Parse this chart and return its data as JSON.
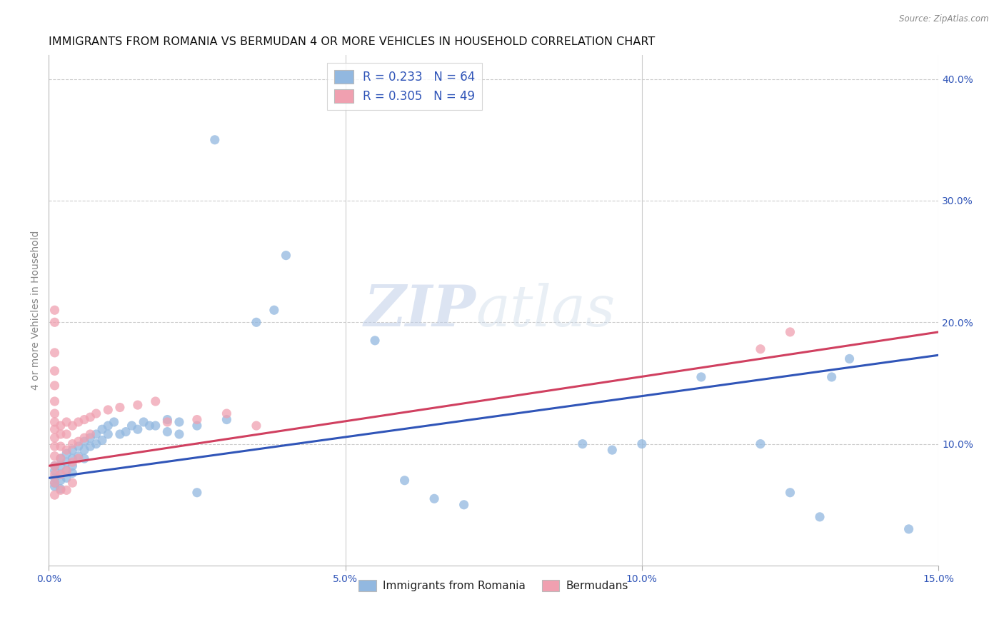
{
  "title": "IMMIGRANTS FROM ROMANIA VS BERMUDAN 4 OR MORE VEHICLES IN HOUSEHOLD CORRELATION CHART",
  "source": "Source: ZipAtlas.com",
  "ylabel": "4 or more Vehicles in Household",
  "xlim": [
    0.0,
    0.15
  ],
  "ylim": [
    0.0,
    0.42
  ],
  "xticks": [
    0.0,
    0.05,
    0.1,
    0.15
  ],
  "xtick_labels": [
    "0.0%",
    "5.0%",
    "10.0%",
    "15.0%"
  ],
  "yticks_right": [
    0.1,
    0.2,
    0.3,
    0.4
  ],
  "ytick_labels_right": [
    "10.0%",
    "20.0%",
    "30.0%",
    "40.0%"
  ],
  "blue_color": "#92b8e0",
  "pink_color": "#f0a0b0",
  "blue_line_color": "#3055b8",
  "pink_line_color": "#d04060",
  "legend_text_color": "#3055b8",
  "title_fontsize": 11.5,
  "axis_label_fontsize": 10,
  "tick_fontsize": 10,
  "R_blue": 0.233,
  "N_blue": 64,
  "R_pink": 0.305,
  "N_pink": 49,
  "watermark_zip": "ZIP",
  "watermark_atlas": "atlas",
  "blue_trend_x0": 0.0,
  "blue_trend_y0": 0.072,
  "blue_trend_x1": 0.15,
  "blue_trend_y1": 0.173,
  "pink_trend_x0": 0.0,
  "pink_trend_y0": 0.082,
  "pink_trend_x1": 0.15,
  "pink_trend_y1": 0.192,
  "blue_scatter": [
    [
      0.001,
      0.082
    ],
    [
      0.001,
      0.078
    ],
    [
      0.001,
      0.072
    ],
    [
      0.001,
      0.068
    ],
    [
      0.001,
      0.065
    ],
    [
      0.002,
      0.088
    ],
    [
      0.002,
      0.082
    ],
    [
      0.002,
      0.075
    ],
    [
      0.002,
      0.07
    ],
    [
      0.002,
      0.063
    ],
    [
      0.003,
      0.092
    ],
    [
      0.003,
      0.085
    ],
    [
      0.003,
      0.078
    ],
    [
      0.003,
      0.072
    ],
    [
      0.004,
      0.095
    ],
    [
      0.004,
      0.088
    ],
    [
      0.004,
      0.082
    ],
    [
      0.004,
      0.076
    ],
    [
      0.005,
      0.098
    ],
    [
      0.005,
      0.09
    ],
    [
      0.006,
      0.102
    ],
    [
      0.006,
      0.095
    ],
    [
      0.006,
      0.088
    ],
    [
      0.007,
      0.105
    ],
    [
      0.007,
      0.098
    ],
    [
      0.008,
      0.108
    ],
    [
      0.008,
      0.1
    ],
    [
      0.009,
      0.112
    ],
    [
      0.009,
      0.103
    ],
    [
      0.01,
      0.115
    ],
    [
      0.01,
      0.108
    ],
    [
      0.011,
      0.118
    ],
    [
      0.012,
      0.108
    ],
    [
      0.013,
      0.11
    ],
    [
      0.014,
      0.115
    ],
    [
      0.015,
      0.112
    ],
    [
      0.016,
      0.118
    ],
    [
      0.017,
      0.115
    ],
    [
      0.018,
      0.115
    ],
    [
      0.02,
      0.12
    ],
    [
      0.02,
      0.11
    ],
    [
      0.022,
      0.118
    ],
    [
      0.022,
      0.108
    ],
    [
      0.025,
      0.115
    ],
    [
      0.025,
      0.06
    ],
    [
      0.03,
      0.12
    ],
    [
      0.035,
      0.2
    ],
    [
      0.038,
      0.21
    ],
    [
      0.04,
      0.255
    ],
    [
      0.028,
      0.35
    ],
    [
      0.055,
      0.185
    ],
    [
      0.06,
      0.07
    ],
    [
      0.065,
      0.055
    ],
    [
      0.07,
      0.05
    ],
    [
      0.09,
      0.1
    ],
    [
      0.095,
      0.095
    ],
    [
      0.1,
      0.1
    ],
    [
      0.11,
      0.155
    ],
    [
      0.12,
      0.1
    ],
    [
      0.125,
      0.06
    ],
    [
      0.13,
      0.04
    ],
    [
      0.132,
      0.155
    ],
    [
      0.135,
      0.17
    ],
    [
      0.145,
      0.03
    ]
  ],
  "pink_scatter": [
    [
      0.001,
      0.21
    ],
    [
      0.001,
      0.2
    ],
    [
      0.001,
      0.175
    ],
    [
      0.001,
      0.16
    ],
    [
      0.001,
      0.148
    ],
    [
      0.001,
      0.135
    ],
    [
      0.001,
      0.125
    ],
    [
      0.001,
      0.118
    ],
    [
      0.001,
      0.112
    ],
    [
      0.001,
      0.105
    ],
    [
      0.001,
      0.098
    ],
    [
      0.001,
      0.09
    ],
    [
      0.001,
      0.082
    ],
    [
      0.001,
      0.075
    ],
    [
      0.001,
      0.068
    ],
    [
      0.001,
      0.058
    ],
    [
      0.002,
      0.115
    ],
    [
      0.002,
      0.108
    ],
    [
      0.002,
      0.098
    ],
    [
      0.002,
      0.088
    ],
    [
      0.002,
      0.075
    ],
    [
      0.002,
      0.062
    ],
    [
      0.003,
      0.118
    ],
    [
      0.003,
      0.108
    ],
    [
      0.003,
      0.095
    ],
    [
      0.003,
      0.078
    ],
    [
      0.003,
      0.062
    ],
    [
      0.004,
      0.115
    ],
    [
      0.004,
      0.1
    ],
    [
      0.004,
      0.085
    ],
    [
      0.004,
      0.068
    ],
    [
      0.005,
      0.118
    ],
    [
      0.005,
      0.102
    ],
    [
      0.005,
      0.088
    ],
    [
      0.006,
      0.12
    ],
    [
      0.006,
      0.105
    ],
    [
      0.007,
      0.122
    ],
    [
      0.007,
      0.108
    ],
    [
      0.008,
      0.125
    ],
    [
      0.01,
      0.128
    ],
    [
      0.012,
      0.13
    ],
    [
      0.015,
      0.132
    ],
    [
      0.018,
      0.135
    ],
    [
      0.02,
      0.118
    ],
    [
      0.025,
      0.12
    ],
    [
      0.03,
      0.125
    ],
    [
      0.035,
      0.115
    ],
    [
      0.12,
      0.178
    ],
    [
      0.125,
      0.192
    ]
  ]
}
